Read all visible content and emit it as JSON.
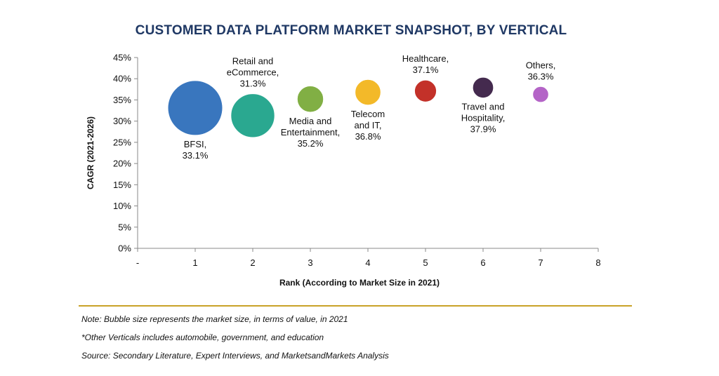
{
  "title": "CUSTOMER DATA PLATFORM MARKET SNAPSHOT, BY VERTICAL",
  "chart_data": {
    "type": "scatter",
    "subtype": "bubble",
    "xlabel": "Rank (According to Market Size in 2021)",
    "ylabel": "CAGR (2021-2026)",
    "xlim": [
      0,
      8
    ],
    "ylim": [
      0,
      45
    ],
    "x_ticks": [
      "-",
      "1",
      "2",
      "3",
      "4",
      "5",
      "6",
      "7",
      "8"
    ],
    "y_ticks": [
      "0%",
      "5%",
      "10%",
      "15%",
      "20%",
      "25%",
      "30%",
      "35%",
      "40%",
      "45%"
    ],
    "grid": false,
    "points": [
      {
        "label": [
          "BFSI,",
          "33.1%"
        ],
        "x": 1,
        "y": 33.1,
        "size": 1.0,
        "color": "#2e6fba",
        "label_pos": "below"
      },
      {
        "label": [
          "Retail and",
          "eCommerce,",
          "31.3%"
        ],
        "x": 2,
        "y": 31.3,
        "size": 0.8,
        "color": "#1fa38a",
        "label_pos": "above"
      },
      {
        "label": [
          "Media and",
          "Entertainment,",
          "35.2%"
        ],
        "x": 3,
        "y": 35.2,
        "size": 0.48,
        "color": "#7aab3a",
        "label_pos": "below"
      },
      {
        "label": [
          "Telecom",
          "and IT,",
          "36.8%"
        ],
        "x": 4,
        "y": 36.8,
        "size": 0.47,
        "color": "#f2b51d",
        "label_pos": "below"
      },
      {
        "label": [
          "Healthcare,",
          "37.1%"
        ],
        "x": 5,
        "y": 37.1,
        "size": 0.4,
        "color": "#c0261d",
        "label_pos": "above"
      },
      {
        "label": [
          "Travel and",
          "Hospitality,",
          "37.9%"
        ],
        "x": 6,
        "y": 37.9,
        "size": 0.38,
        "color": "#3a1f45",
        "label_pos": "below"
      },
      {
        "label": [
          "Others,",
          "36.3%"
        ],
        "x": 7,
        "y": 36.3,
        "size": 0.29,
        "color": "#b05cc4",
        "label_pos": "above"
      }
    ]
  },
  "notes": {
    "note1": "Note: Bubble size represents the market size, in terms of value, in 2021",
    "note2": "*Other Verticals includes automobile, government, and education",
    "source": "Source: Secondary Literature, Expert Interviews, and MarketsandMarkets Analysis"
  }
}
